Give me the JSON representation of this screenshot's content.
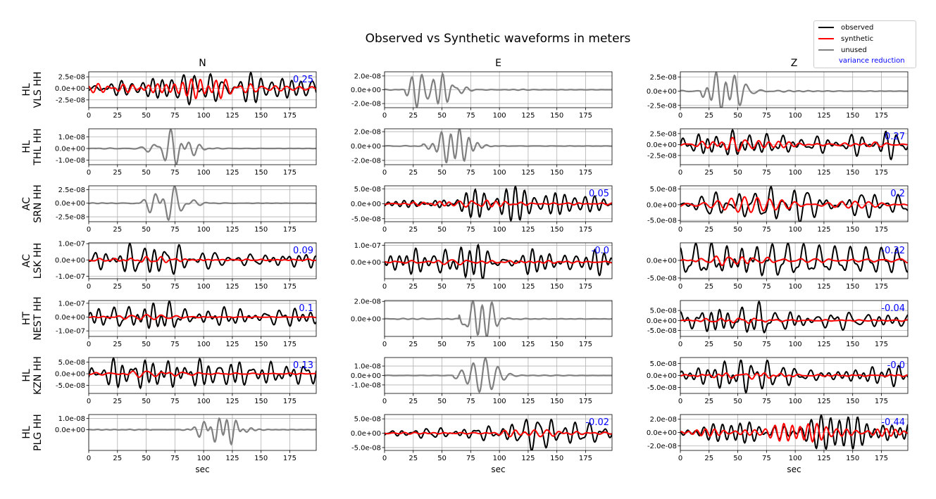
{
  "chart_data": {
    "type": "line",
    "title": "Observed vs Synthetic waveforms in meters",
    "xlabel": "sec",
    "xlim": [
      0,
      198
    ],
    "xticks": [
      0,
      25,
      50,
      75,
      100,
      125,
      150,
      175
    ],
    "grid": true,
    "legend": {
      "placement": "top-right",
      "entries": [
        {
          "label": "observed",
          "color": "#000000"
        },
        {
          "label": "synthetic",
          "color": "#ff0000"
        },
        {
          "label": "unused",
          "color": "#808080"
        },
        {
          "label": "variance reduction",
          "color": "#0000ff",
          "text_only": true
        }
      ]
    },
    "columns": [
      "N",
      "E",
      "Z"
    ],
    "stations": [
      {
        "network": "HL",
        "name": "VLS HH"
      },
      {
        "network": "HL",
        "name": "THL HH"
      },
      {
        "network": "AC",
        "name": "SRN HH"
      },
      {
        "network": "AC",
        "name": "LSK HH"
      },
      {
        "network": "HT",
        "name": "NEST HH"
      },
      {
        "network": "HL",
        "name": "KZN HH"
      },
      {
        "network": "HL",
        "name": "PLG HH"
      }
    ],
    "panels": [
      [
        {
          "used": true,
          "vr": "0.25",
          "ylim": [
            -4.2e-08,
            3.6e-08
          ],
          "yticks": [
            2.5e-08,
            0,
            -2.5e-08
          ],
          "ytick_labels": [
            "2.5e-08",
            "0.0e+00",
            "-2.5e-08"
          ],
          "obs_peak": 3.5e-08,
          "syn_peak": 2.2e-08,
          "onset": 0,
          "seed": 11
        },
        {
          "used": false,
          "vr": "",
          "ylim": [
            -1.4e-08,
            1.7e-08
          ],
          "yticks": [
            1e-08,
            0,
            -1e-08
          ],
          "ytick_labels": [
            "1.0e-08",
            "0.0e+00",
            "-1.0e-08"
          ],
          "obs_peak": 1.65e-08,
          "syn_peak": 0,
          "onset": 32,
          "center": 73,
          "seed": 12
        },
        {
          "used": false,
          "vr": "",
          "ylim": [
            -3.4e-08,
            3.2e-08
          ],
          "yticks": [
            2.5e-08,
            0,
            -2.5e-08
          ],
          "ytick_labels": [
            "2.5e-08",
            "0.0e+00",
            "-2.5e-08"
          ],
          "obs_peak": 3.1e-08,
          "syn_peak": 0,
          "onset": 32,
          "center": 68,
          "seed": 13
        },
        {
          "used": true,
          "vr": "0.09",
          "ylim": [
            -1.15e-07,
            1.05e-07
          ],
          "yticks": [
            1e-07,
            0,
            -1e-07
          ],
          "ytick_labels": [
            "1.0e-07",
            "0.0e+00",
            "-1.0e-07"
          ],
          "obs_peak": 1e-07,
          "syn_peak": 2e-08,
          "onset": 0,
          "center": 55,
          "seed": 14
        },
        {
          "used": true,
          "vr": "0.1",
          "ylim": [
            -1.4e-07,
            1.2e-07
          ],
          "yticks": [
            1e-07,
            0,
            -1e-07
          ],
          "ytick_labels": [
            "1.0e-07",
            "0.0e+00",
            "-1.0e-07"
          ],
          "obs_peak": 1.15e-07,
          "syn_peak": 1.8e-08,
          "onset": 0,
          "center": 48,
          "seed": 15
        },
        {
          "used": true,
          "vr": "0.13",
          "ylim": [
            -8.5e-08,
            7e-08
          ],
          "yticks": [
            5e-08,
            0,
            -5e-08
          ],
          "ytick_labels": [
            "5.0e-08",
            "0.0e+00",
            "-5.0e-08"
          ],
          "obs_peak": 6.8e-08,
          "syn_peak": 1.5e-08,
          "onset": 0,
          "center": 55,
          "seed": 16
        },
        {
          "used": false,
          "vr": "",
          "ylim": [
            -1.85e-08,
            1.35e-08
          ],
          "yticks": [
            1e-08,
            0
          ],
          "ytick_labels": [
            "1.0e-08",
            "0.0e+00"
          ],
          "obs_peak": 1.3e-08,
          "syn_peak": 0,
          "onset": 55,
          "center": 115,
          "seed": 17
        }
      ],
      [
        {
          "used": false,
          "vr": "",
          "ylim": [
            -2.6e-08,
            2.6e-08
          ],
          "yticks": [
            2e-08,
            0,
            -2e-08
          ],
          "ytick_labels": [
            "2.0e-08",
            "0.0e+00",
            "-2.0e-08"
          ],
          "obs_peak": 2.5e-08,
          "syn_peak": 0,
          "onset": 18,
          "center": 42,
          "seed": 21
        },
        {
          "used": false,
          "vr": "",
          "ylim": [
            -2.6e-08,
            2.4e-08
          ],
          "yticks": [
            2e-08,
            0,
            -2e-08
          ],
          "ytick_labels": [
            "2.0e-08",
            "0.0e+00",
            "-2.0e-08"
          ],
          "obs_peak": 2.4e-08,
          "syn_peak": 0,
          "onset": 33,
          "center": 62,
          "seed": 22
        },
        {
          "used": true,
          "vr": "0.05",
          "ylim": [
            -6e-08,
            6e-08
          ],
          "yticks": [
            5e-08,
            0,
            -5e-08
          ],
          "ytick_labels": [
            "5.0e-08",
            "0.0e+00",
            "-5.0e-08"
          ],
          "obs_peak": 5.8e-08,
          "syn_peak": 1.2e-08,
          "onset": 0,
          "center": 78,
          "seed": 23
        },
        {
          "used": true,
          "vr": "-0.0",
          "ylim": [
            -1e-07,
            1.15e-07
          ],
          "yticks": [
            1e-07,
            0
          ],
          "ytick_labels": [
            "1.0e-07",
            "0.0e+00"
          ],
          "obs_peak": 1.05e-07,
          "syn_peak": 1.6e-08,
          "onset": 0,
          "center": 58,
          "seed": 24
        },
        {
          "used": false,
          "vr": "",
          "ylim": [
            -2e-08,
            2.1e-08
          ],
          "yticks": [
            2e-08,
            0
          ],
          "ytick_labels": [
            "2.0e-08",
            "0.0e+00"
          ],
          "obs_peak": 2.1e-08,
          "syn_peak": 0,
          "onset": 65,
          "center": 80,
          "seed": 25
        },
        {
          "used": false,
          "vr": "",
          "ylim": [
            -1.9e-08,
            1.9e-08
          ],
          "yticks": [
            1e-08,
            0,
            -1e-08
          ],
          "ytick_labels": [
            "1.0e-08",
            "0.0e+00",
            "-1.0e-08"
          ],
          "obs_peak": 1.8e-08,
          "syn_peak": 0,
          "onset": 60,
          "center": 80,
          "seed": 26
        },
        {
          "used": true,
          "vr": "-0.02",
          "ylim": [
            -6e-08,
            6.5e-08
          ],
          "yticks": [
            5e-08,
            0,
            -5e-08
          ],
          "ytick_labels": [
            "5.0e-08",
            "0.0e+00",
            "-5.0e-08"
          ],
          "obs_peak": 6.2e-08,
          "syn_peak": 1.2e-08,
          "onset": 0,
          "center": 135,
          "seed": 27
        }
      ],
      [
        {
          "used": false,
          "vr": "",
          "ylim": [
            -2.9e-08,
            3.4e-08
          ],
          "yticks": [
            2.5e-08,
            0,
            -2.5e-08
          ],
          "ytick_labels": [
            "2.5e-08",
            "0.0e+00",
            "-2.5e-08"
          ],
          "obs_peak": 3.3e-08,
          "syn_peak": 0,
          "onset": 18,
          "center": 35,
          "seed": 31
        },
        {
          "used": true,
          "vr": "0.27",
          "ylim": [
            -4.6e-08,
            3.6e-08
          ],
          "yticks": [
            2.5e-08,
            0,
            -2.5e-08
          ],
          "ytick_labels": [
            "2.5e-08",
            "0.0e+00",
            "-2.5e-08"
          ],
          "obs_peak": 3.4e-08,
          "syn_peak": 1.6e-08,
          "onset": 0,
          "center": 58,
          "seed": 32
        },
        {
          "used": true,
          "vr": "0.2",
          "ylim": [
            -5.4e-08,
            6e-08
          ],
          "yticks": [
            5e-08,
            0,
            -5e-08
          ],
          "ytick_labels": [
            "5.0e-08",
            "0.0e+00",
            "-5.0e-08"
          ],
          "obs_peak": 5.7e-08,
          "syn_peak": 2.5e-08,
          "onset": 0,
          "center": 75,
          "seed": 33
        },
        {
          "used": true,
          "vr": "-0.32",
          "ylim": [
            -5.2e-08,
            5e-08
          ],
          "yticks": [
            0,
            -5e-08
          ],
          "ytick_labels": [
            "0.0e+00",
            "-5.0e-08"
          ],
          "obs_peak": 5e-08,
          "syn_peak": 1.4e-08,
          "onset": 0,
          "center": 48,
          "seed": 34
        },
        {
          "used": true,
          "vr": "-0.04",
          "ylim": [
            -8e-08,
            1e-07
          ],
          "yticks": [
            5e-08,
            0,
            -5e-08
          ],
          "ytick_labels": [
            "5.0e-08",
            "0.0e+00",
            "-5.0e-08"
          ],
          "obs_peak": 9.5e-08,
          "syn_peak": 1.4e-08,
          "onset": 0,
          "center": 50,
          "seed": 35
        },
        {
          "used": true,
          "vr": "-0.0",
          "ylim": [
            -7.5e-08,
            7.5e-08
          ],
          "yticks": [
            5e-08,
            0,
            -5e-08
          ],
          "ytick_labels": [
            "5.0e-08",
            "0.0e+00",
            "-5.0e-08"
          ],
          "obs_peak": 7.2e-08,
          "syn_peak": 1.5e-08,
          "onset": 0,
          "center": 60,
          "seed": 36
        },
        {
          "used": true,
          "vr": "-0.44",
          "ylim": [
            -2.7e-08,
            2.7e-08
          ],
          "yticks": [
            2e-08,
            0,
            -2e-08
          ],
          "ytick_labels": [
            "2.0e-08",
            "0.0e+00",
            "-2.0e-08"
          ],
          "obs_peak": 2.6e-08,
          "syn_peak": 1.4e-08,
          "onset": 0,
          "center": 105,
          "seed": 37
        }
      ]
    ]
  }
}
